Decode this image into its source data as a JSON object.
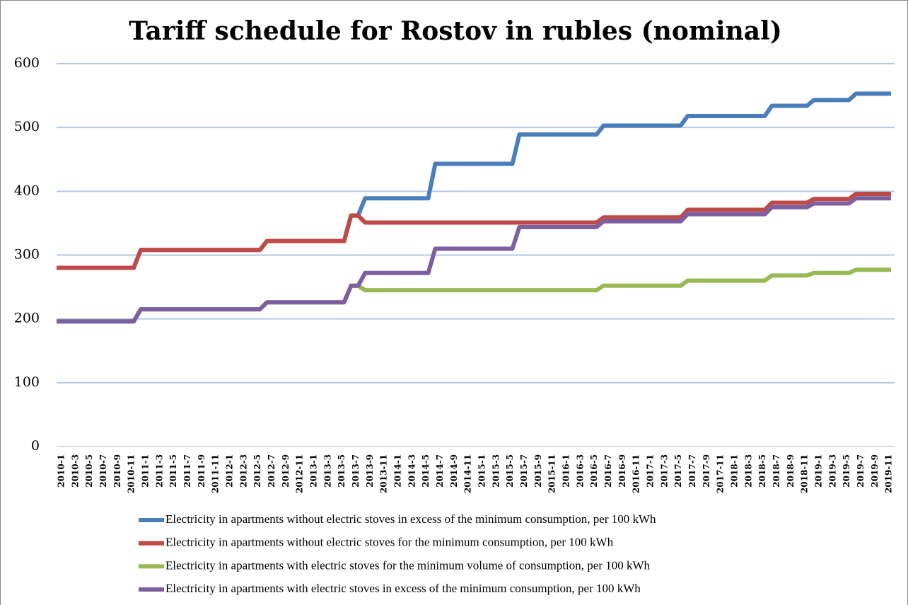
{
  "chart_data": {
    "type": "line",
    "title": "Tariff schedule for Rostov   in rubles (nominal)",
    "categories": [
      "2010-1",
      null,
      "2010-3",
      null,
      "2010-5",
      null,
      "2010-7",
      null,
      "2010-9",
      null,
      "2010-11",
      null,
      "2011-1",
      null,
      "2011-3",
      null,
      "2011-5",
      null,
      "2011-7",
      null,
      "2011-9",
      null,
      "2011-11",
      null,
      "2012-1",
      null,
      "2012-3",
      null,
      "2012-5",
      null,
      "2012-7",
      null,
      "2012-9",
      null,
      "2012-11",
      null,
      "2013-1",
      null,
      "2013-3",
      null,
      "2013-5",
      null,
      "2013-7",
      null,
      "2013-9",
      null,
      "2013-11",
      null,
      "2014-1",
      null,
      "2014-3",
      null,
      "2014-5",
      null,
      "2014-7",
      null,
      "2014-9",
      null,
      "2014-11",
      null,
      "2015-1",
      null,
      "2015-3",
      null,
      "2015-5",
      null,
      "2015-7",
      null,
      "2015-9",
      null,
      "2015-11",
      null,
      "2016-1",
      null,
      "2016-3",
      null,
      "2016-5",
      null,
      "2016-7",
      null,
      "2016-9",
      null,
      "2016-11",
      null,
      "2017-1",
      null,
      "2017-3",
      null,
      "2017-5",
      null,
      "2017-7",
      null,
      "2017-9",
      null,
      "2017-11",
      null,
      "2018-1",
      null,
      "2018-3",
      null,
      "2018-5",
      null,
      "2018-7",
      null,
      "2018-9",
      null,
      "2018-11",
      null,
      "2019-1",
      null,
      "2019-3",
      null,
      "2019-5",
      null,
      "2019-7",
      null,
      "2019-9",
      null,
      "2019-11",
      null
    ],
    "series": [
      {
        "name": "Electricity in apartments without electric stoves in excess of the minimum consumption, per 100 kWh",
        "color": "#4a7ebb",
        "values": [
          280,
          280,
          280,
          280,
          280,
          280,
          280,
          280,
          280,
          280,
          280,
          280,
          308,
          308,
          308,
          308,
          308,
          308,
          308,
          308,
          308,
          308,
          308,
          308,
          308,
          308,
          308,
          308,
          308,
          308,
          322,
          322,
          322,
          322,
          322,
          322,
          322,
          322,
          322,
          322,
          322,
          322,
          362,
          362,
          389,
          389,
          389,
          389,
          389,
          389,
          389,
          389,
          389,
          389,
          443,
          443,
          443,
          443,
          443,
          443,
          443,
          443,
          443,
          443,
          443,
          443,
          489,
          489,
          489,
          489,
          489,
          489,
          489,
          489,
          489,
          489,
          489,
          489,
          503,
          503,
          503,
          503,
          503,
          503,
          503,
          503,
          503,
          503,
          503,
          503,
          518,
          518,
          518,
          518,
          518,
          518,
          518,
          518,
          518,
          518,
          518,
          518,
          534,
          534,
          534,
          534,
          534,
          534,
          543,
          543,
          543,
          543,
          543,
          543,
          553,
          553,
          553,
          553,
          553,
          553
        ]
      },
      {
        "name": "Electricity in apartments without electric stoves for the minimum consumption, per 100 kWh",
        "color": "#be4b48",
        "values": [
          280,
          280,
          280,
          280,
          280,
          280,
          280,
          280,
          280,
          280,
          280,
          280,
          308,
          308,
          308,
          308,
          308,
          308,
          308,
          308,
          308,
          308,
          308,
          308,
          308,
          308,
          308,
          308,
          308,
          308,
          322,
          322,
          322,
          322,
          322,
          322,
          322,
          322,
          322,
          322,
          322,
          322,
          362,
          362,
          351,
          351,
          351,
          351,
          351,
          351,
          351,
          351,
          351,
          351,
          351,
          351,
          351,
          351,
          351,
          351,
          351,
          351,
          351,
          351,
          351,
          351,
          351,
          351,
          351,
          351,
          351,
          351,
          351,
          351,
          351,
          351,
          351,
          351,
          359,
          359,
          359,
          359,
          359,
          359,
          359,
          359,
          359,
          359,
          359,
          359,
          371,
          371,
          371,
          371,
          371,
          371,
          371,
          371,
          371,
          371,
          371,
          371,
          382,
          382,
          382,
          382,
          382,
          382,
          388,
          388,
          388,
          388,
          388,
          388,
          396,
          396,
          396,
          396,
          396,
          396
        ]
      },
      {
        "name": "Electricity in apartments with electric stoves for the minimum volume of consumption, per 100 kWh",
        "color": "#98b954",
        "values": [
          196,
          196,
          196,
          196,
          196,
          196,
          196,
          196,
          196,
          196,
          196,
          196,
          215,
          215,
          215,
          215,
          215,
          215,
          215,
          215,
          215,
          215,
          215,
          215,
          215,
          215,
          215,
          215,
          215,
          215,
          226,
          226,
          226,
          226,
          226,
          226,
          226,
          226,
          226,
          226,
          226,
          226,
          252,
          252,
          245,
          245,
          245,
          245,
          245,
          245,
          245,
          245,
          245,
          245,
          245,
          245,
          245,
          245,
          245,
          245,
          245,
          245,
          245,
          245,
          245,
          245,
          245,
          245,
          245,
          245,
          245,
          245,
          245,
          245,
          245,
          245,
          245,
          245,
          252,
          252,
          252,
          252,
          252,
          252,
          252,
          252,
          252,
          252,
          252,
          252,
          260,
          260,
          260,
          260,
          260,
          260,
          260,
          260,
          260,
          260,
          260,
          260,
          268,
          268,
          268,
          268,
          268,
          268,
          272,
          272,
          272,
          272,
          272,
          272,
          277,
          277,
          277,
          277,
          277,
          277
        ]
      },
      {
        "name": "Electricity in apartments with electric stoves in excess of the minimum consumption, per 100 kWh",
        "color": "#7d5fa0",
        "values": [
          196,
          196,
          196,
          196,
          196,
          196,
          196,
          196,
          196,
          196,
          196,
          196,
          215,
          215,
          215,
          215,
          215,
          215,
          215,
          215,
          215,
          215,
          215,
          215,
          215,
          215,
          215,
          215,
          215,
          215,
          226,
          226,
          226,
          226,
          226,
          226,
          226,
          226,
          226,
          226,
          226,
          226,
          252,
          252,
          272,
          272,
          272,
          272,
          272,
          272,
          272,
          272,
          272,
          272,
          310,
          310,
          310,
          310,
          310,
          310,
          310,
          310,
          310,
          310,
          310,
          310,
          344,
          344,
          344,
          344,
          344,
          344,
          344,
          344,
          344,
          344,
          344,
          344,
          353,
          353,
          353,
          353,
          353,
          353,
          353,
          353,
          353,
          353,
          353,
          353,
          364,
          364,
          364,
          364,
          364,
          364,
          364,
          364,
          364,
          364,
          364,
          364,
          375,
          375,
          375,
          375,
          375,
          375,
          381,
          381,
          381,
          381,
          381,
          381,
          389,
          389,
          389,
          389,
          389,
          389
        ]
      }
    ],
    "ylim": [
      0,
      600
    ],
    "yticks": [
      0,
      100,
      200,
      300,
      400,
      500,
      600
    ],
    "grid": true,
    "legend": "bottom"
  }
}
